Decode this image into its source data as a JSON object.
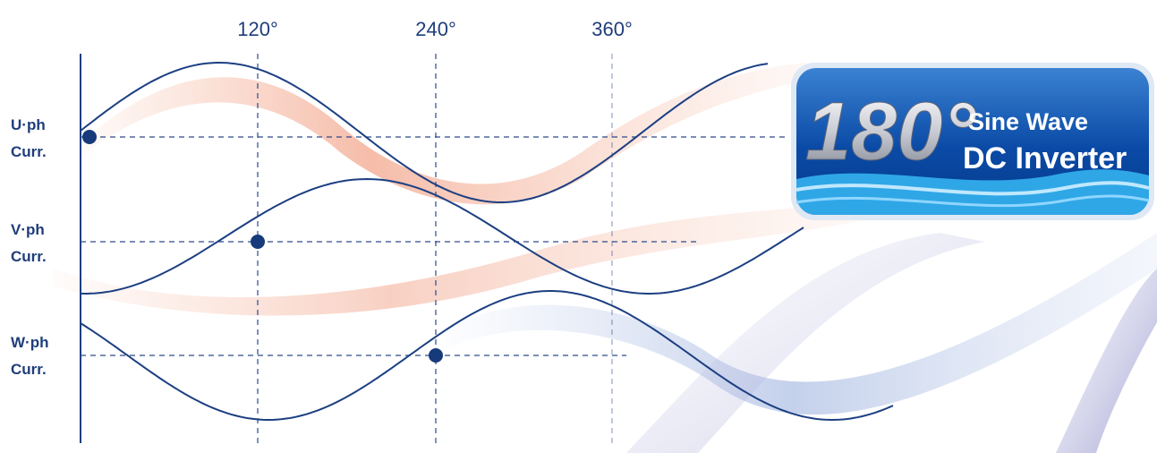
{
  "axis_labels": [
    "120°",
    "240°",
    "360°"
  ],
  "phases": [
    {
      "name": "U·ph",
      "unit": "Curr."
    },
    {
      "name": "V·ph",
      "unit": "Curr."
    },
    {
      "name": "W·ph",
      "unit": "Curr."
    }
  ],
  "badge": {
    "angle": "180°",
    "line1": "Sine Wave",
    "line2": "DC Inverter"
  }
}
